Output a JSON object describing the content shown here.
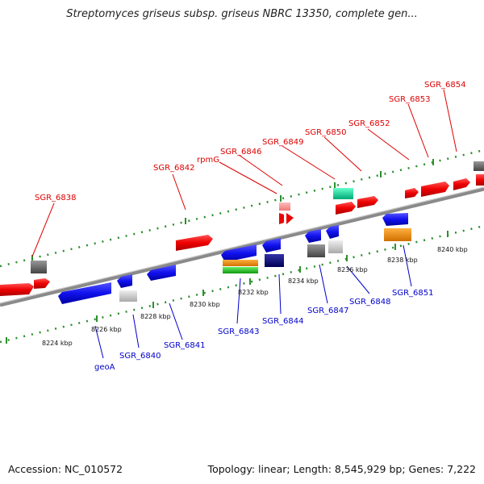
{
  "title": "Streptomyces griseus subsp. griseus NBRC 13350, complete gen...",
  "footer": {
    "accession": "Accession: NC_010572",
    "summary": "Topology: linear; Length: 8,545,929 bp; Genes: 7,222"
  },
  "colors": {
    "forward_label": "#dd0000",
    "reverse_label": "#0000cc",
    "backbone": "#808080",
    "tick_forward": "#2d8f2d",
    "tick_reverse": "#2d8f2d"
  },
  "kbp_labels": [
    "8224 kbp",
    "8226 kbp",
    "8228 kbp",
    "8230 kbp",
    "8232 kbp",
    "8234 kbp",
    "8236 kbp",
    "8238 kbp",
    "8240 kbp"
  ],
  "forward_labels": [
    "SGR_6838",
    "SGR_6842",
    "rpmG",
    "SGR_6846",
    "SGR_6849",
    "SGR_6850",
    "SGR_6852",
    "SGR_6853",
    "SGR_6854"
  ],
  "reverse_labels": [
    "geoA",
    "SGR_6840",
    "SGR_6841",
    "SGR_6843",
    "SGR_6844",
    "SGR_6847",
    "SGR_6848",
    "SGR_6851"
  ]
}
